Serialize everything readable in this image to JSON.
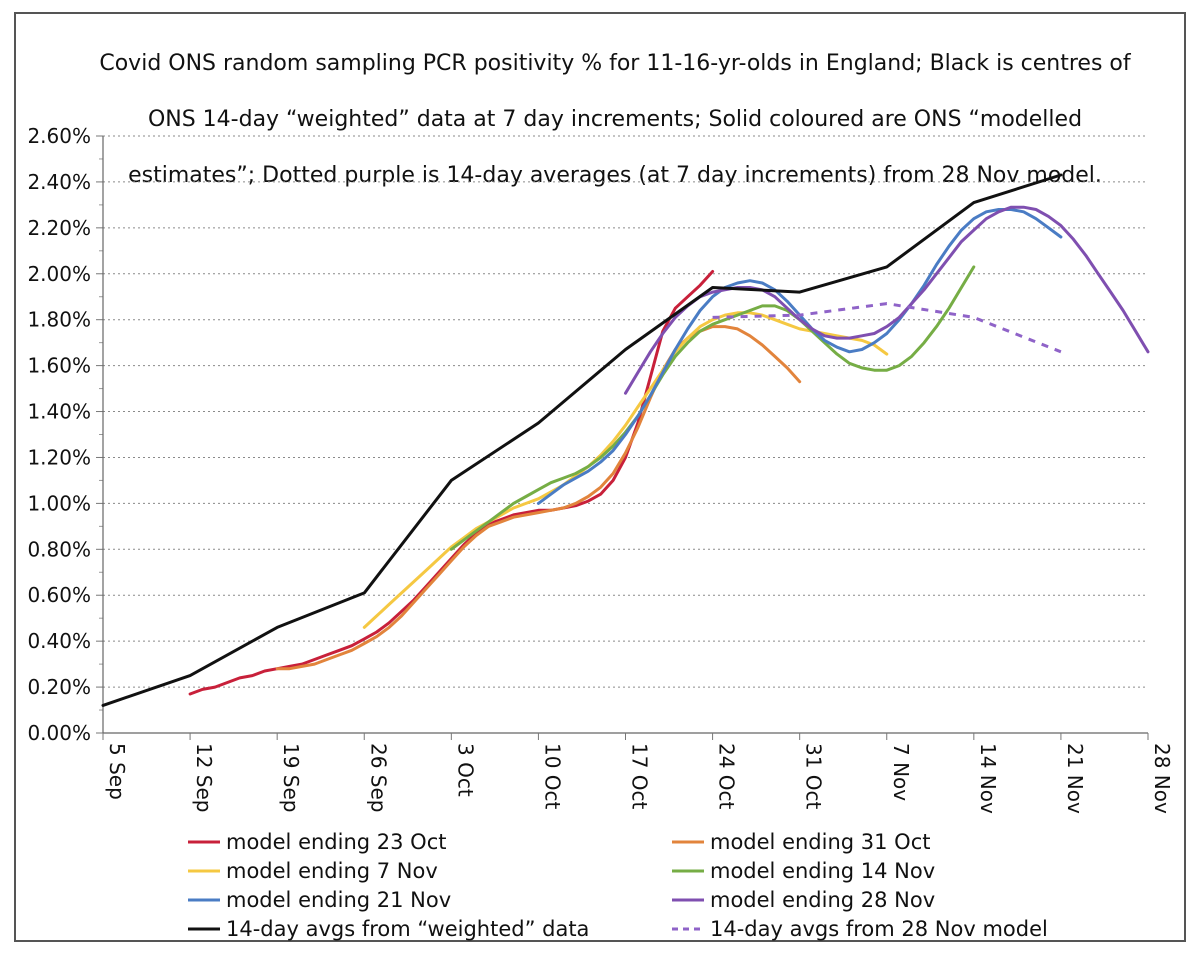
{
  "chart_data": {
    "type": "line",
    "title": "Covid ONS random sampling PCR positivity % for 11-16-yr-olds in England; Black is centres of ONS 14-day “weighted” data at 7 day increments; Solid coloured are ONS “modelled estimates”; Dotted purple is 14-day averages (at 7 day increments) from 28 Nov model.",
    "title_lines": [
      "Covid ONS random sampling PCR positivity % for 11-16-yr-olds in England; Black is centres of",
      "ONS 14-day “weighted” data at 7 day increments; Solid coloured are ONS “modelled",
      "estimates”; Dotted purple is 14-day averages (at 7 day increments) from 28 Nov model."
    ],
    "xlabel": "",
    "ylabel": "",
    "x_unit": "days after 5 Sep",
    "xlim": [
      0,
      84
    ],
    "ylim": [
      0,
      2.6
    ],
    "x_ticks": [
      {
        "x": 0,
        "label": "5 Sep"
      },
      {
        "x": 7,
        "label": "12 Sep"
      },
      {
        "x": 14,
        "label": "19 Sep"
      },
      {
        "x": 21,
        "label": "26 Sep"
      },
      {
        "x": 28,
        "label": "3 Oct"
      },
      {
        "x": 35,
        "label": "10 Oct"
      },
      {
        "x": 42,
        "label": "17 Oct"
      },
      {
        "x": 49,
        "label": "24 Oct"
      },
      {
        "x": 56,
        "label": "31 Oct"
      },
      {
        "x": 63,
        "label": "7 Nov"
      },
      {
        "x": 70,
        "label": "14 Nov"
      },
      {
        "x": 77,
        "label": "21 Nov"
      },
      {
        "x": 84,
        "label": "28 Nov"
      }
    ],
    "y_ticks": [
      {
        "y": 0,
        "label": "0.00%"
      },
      {
        "y": 0.2,
        "label": "0.20%"
      },
      {
        "y": 0.4,
        "label": "0.40%"
      },
      {
        "y": 0.6,
        "label": "0.60%"
      },
      {
        "y": 0.8,
        "label": "0.80%"
      },
      {
        "y": 1.0,
        "label": "1.00%"
      },
      {
        "y": 1.2,
        "label": "1.20%"
      },
      {
        "y": 1.4,
        "label": "1.40%"
      },
      {
        "y": 1.6,
        "label": "1.60%"
      },
      {
        "y": 1.8,
        "label": "1.80%"
      },
      {
        "y": 2.0,
        "label": "2.00%"
      },
      {
        "y": 2.2,
        "label": "2.20%"
      },
      {
        "y": 2.4,
        "label": "2.40%"
      },
      {
        "y": 2.6,
        "label": "2.60%"
      }
    ],
    "grid": "horizontal dotted",
    "legend_position": "bottom",
    "series": [
      {
        "name": "model ending 23 Oct",
        "color": "#c8203a",
        "dashed": false,
        "x": [
          7,
          8,
          9,
          10,
          11,
          12,
          13,
          14,
          15,
          16,
          17,
          18,
          19,
          20,
          21,
          22,
          23,
          24,
          25,
          26,
          27,
          28,
          29,
          30,
          31,
          32,
          33,
          34,
          35,
          36,
          37,
          38,
          39,
          40,
          41,
          42,
          43,
          44,
          45,
          46,
          47,
          48,
          49
        ],
        "y": [
          0.17,
          0.19,
          0.2,
          0.22,
          0.24,
          0.25,
          0.27,
          0.28,
          0.29,
          0.3,
          0.32,
          0.34,
          0.36,
          0.38,
          0.41,
          0.44,
          0.48,
          0.53,
          0.58,
          0.64,
          0.7,
          0.76,
          0.82,
          0.87,
          0.91,
          0.93,
          0.95,
          0.96,
          0.97,
          0.97,
          0.98,
          0.99,
          1.01,
          1.04,
          1.1,
          1.2,
          1.35,
          1.55,
          1.75,
          1.85,
          1.9,
          1.95,
          2.01
        ]
      },
      {
        "name": "model ending 31 Oct",
        "color": "#e2843c",
        "dashed": false,
        "x": [
          14,
          15,
          16,
          17,
          18,
          19,
          20,
          21,
          22,
          23,
          24,
          25,
          26,
          27,
          28,
          29,
          30,
          31,
          32,
          33,
          34,
          35,
          36,
          37,
          38,
          39,
          40,
          41,
          42,
          43,
          44,
          45,
          46,
          47,
          48,
          49,
          50,
          51,
          52,
          53,
          54,
          55,
          56
        ],
        "y": [
          0.28,
          0.28,
          0.29,
          0.3,
          0.32,
          0.34,
          0.36,
          0.39,
          0.42,
          0.46,
          0.51,
          0.57,
          0.63,
          0.69,
          0.75,
          0.81,
          0.86,
          0.9,
          0.92,
          0.94,
          0.95,
          0.96,
          0.97,
          0.98,
          1.0,
          1.03,
          1.07,
          1.13,
          1.22,
          1.33,
          1.46,
          1.58,
          1.67,
          1.72,
          1.75,
          1.77,
          1.77,
          1.76,
          1.73,
          1.69,
          1.64,
          1.59,
          1.53
        ]
      },
      {
        "name": "model ending 7 Nov",
        "color": "#f5c842",
        "dashed": false,
        "x": [
          21,
          22,
          23,
          24,
          25,
          26,
          27,
          28,
          29,
          30,
          31,
          32,
          33,
          34,
          35,
          36,
          37,
          38,
          39,
          40,
          41,
          42,
          43,
          44,
          45,
          46,
          47,
          48,
          49,
          50,
          51,
          52,
          53,
          54,
          55,
          56,
          57,
          58,
          59,
          60,
          61,
          62,
          63
        ],
        "y": [
          0.46,
          0.51,
          0.56,
          0.61,
          0.66,
          0.71,
          0.76,
          0.81,
          0.85,
          0.89,
          0.92,
          0.95,
          0.98,
          1.0,
          1.02,
          1.05,
          1.08,
          1.12,
          1.16,
          1.21,
          1.27,
          1.34,
          1.42,
          1.5,
          1.58,
          1.66,
          1.72,
          1.77,
          1.8,
          1.82,
          1.83,
          1.83,
          1.82,
          1.8,
          1.78,
          1.76,
          1.75,
          1.74,
          1.73,
          1.72,
          1.71,
          1.69,
          1.65
        ]
      },
      {
        "name": "model ending 14 Nov",
        "color": "#76ad45",
        "dashed": false,
        "x": [
          28,
          29,
          30,
          31,
          32,
          33,
          34,
          35,
          36,
          37,
          38,
          39,
          40,
          41,
          42,
          43,
          44,
          45,
          46,
          47,
          48,
          49,
          50,
          51,
          52,
          53,
          54,
          55,
          56,
          57,
          58,
          59,
          60,
          61,
          62,
          63,
          64,
          65,
          66,
          67,
          68,
          69,
          70
        ],
        "y": [
          0.8,
          0.84,
          0.88,
          0.92,
          0.96,
          1.0,
          1.03,
          1.06,
          1.09,
          1.11,
          1.13,
          1.16,
          1.2,
          1.25,
          1.31,
          1.38,
          1.47,
          1.56,
          1.64,
          1.7,
          1.75,
          1.78,
          1.8,
          1.82,
          1.84,
          1.86,
          1.86,
          1.84,
          1.8,
          1.75,
          1.7,
          1.65,
          1.61,
          1.59,
          1.58,
          1.58,
          1.6,
          1.64,
          1.7,
          1.77,
          1.85,
          1.94,
          2.03
        ]
      },
      {
        "name": "model ending 21 Nov",
        "color": "#4a7cc4",
        "dashed": false,
        "x": [
          35,
          36,
          37,
          38,
          39,
          40,
          41,
          42,
          43,
          44,
          45,
          46,
          47,
          48,
          49,
          50,
          51,
          52,
          53,
          54,
          55,
          56,
          57,
          58,
          59,
          60,
          61,
          62,
          63,
          64,
          65,
          66,
          67,
          68,
          69,
          70,
          71,
          72,
          73,
          74,
          75,
          76,
          77
        ],
        "y": [
          1.0,
          1.04,
          1.08,
          1.11,
          1.14,
          1.18,
          1.23,
          1.3,
          1.38,
          1.47,
          1.57,
          1.67,
          1.76,
          1.84,
          1.9,
          1.94,
          1.96,
          1.97,
          1.96,
          1.93,
          1.88,
          1.82,
          1.76,
          1.71,
          1.68,
          1.66,
          1.67,
          1.7,
          1.74,
          1.8,
          1.87,
          1.95,
          2.04,
          2.12,
          2.19,
          2.24,
          2.27,
          2.28,
          2.28,
          2.27,
          2.24,
          2.2,
          2.16
        ]
      },
      {
        "name": "model ending 28 Nov",
        "color": "#7f4fb0",
        "dashed": false,
        "x": [
          42,
          43,
          44,
          45,
          46,
          47,
          48,
          49,
          50,
          51,
          52,
          53,
          54,
          55,
          56,
          57,
          58,
          59,
          60,
          61,
          62,
          63,
          64,
          65,
          66,
          67,
          68,
          69,
          70,
          71,
          72,
          73,
          74,
          75,
          76,
          77,
          78,
          79,
          80,
          81,
          82,
          83,
          84
        ],
        "y": [
          1.48,
          1.57,
          1.66,
          1.74,
          1.81,
          1.86,
          1.9,
          1.92,
          1.93,
          1.94,
          1.94,
          1.93,
          1.9,
          1.85,
          1.8,
          1.76,
          1.73,
          1.72,
          1.72,
          1.73,
          1.74,
          1.77,
          1.81,
          1.87,
          1.93,
          2.0,
          2.07,
          2.14,
          2.19,
          2.24,
          2.27,
          2.29,
          2.29,
          2.28,
          2.25,
          2.21,
          2.15,
          2.08,
          2.0,
          1.92,
          1.84,
          1.75,
          1.66
        ]
      },
      {
        "name": "14-day avgs from “weighted” data",
        "color": "#111111",
        "dashed": false,
        "x": [
          0,
          7,
          14,
          21,
          28,
          35,
          42,
          49,
          56,
          63,
          70,
          77
        ],
        "y": [
          0.12,
          0.25,
          0.46,
          0.61,
          1.1,
          1.35,
          1.67,
          1.94,
          1.92,
          2.03,
          2.31,
          2.43
        ]
      },
      {
        "name": "14-day avgs from 28 Nov model",
        "color": "#8f63c8",
        "dashed": true,
        "x": [
          49,
          56,
          63,
          70,
          77
        ],
        "y": [
          1.81,
          1.82,
          1.87,
          1.81,
          1.66
        ]
      }
    ]
  }
}
